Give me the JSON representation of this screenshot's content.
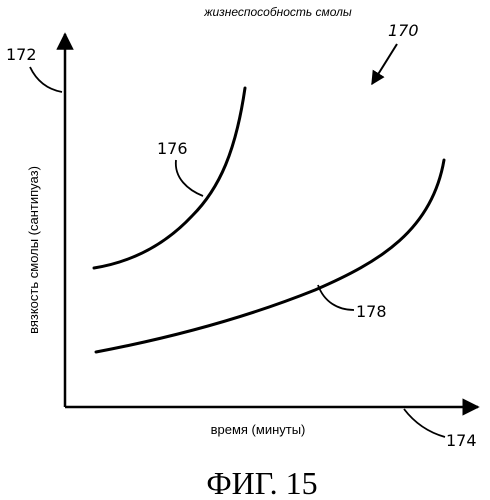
{
  "chart_data": {
    "type": "line",
    "title": "жизнеспособность смолы",
    "xlabel": "время (минуты)",
    "ylabel": "вязкость смолы (сантипуаз)",
    "grid": false,
    "legend": "none",
    "series": [
      {
        "name": "176",
        "label_text": "176"
      },
      {
        "name": "178",
        "label_text": "178"
      }
    ]
  },
  "reference_numerals": {
    "figure": "170",
    "y_axis": "172",
    "x_axis": "174"
  },
  "caption": "ФИГ. 15",
  "colors": {
    "ink": "#000000",
    "background": "#ffffff"
  }
}
